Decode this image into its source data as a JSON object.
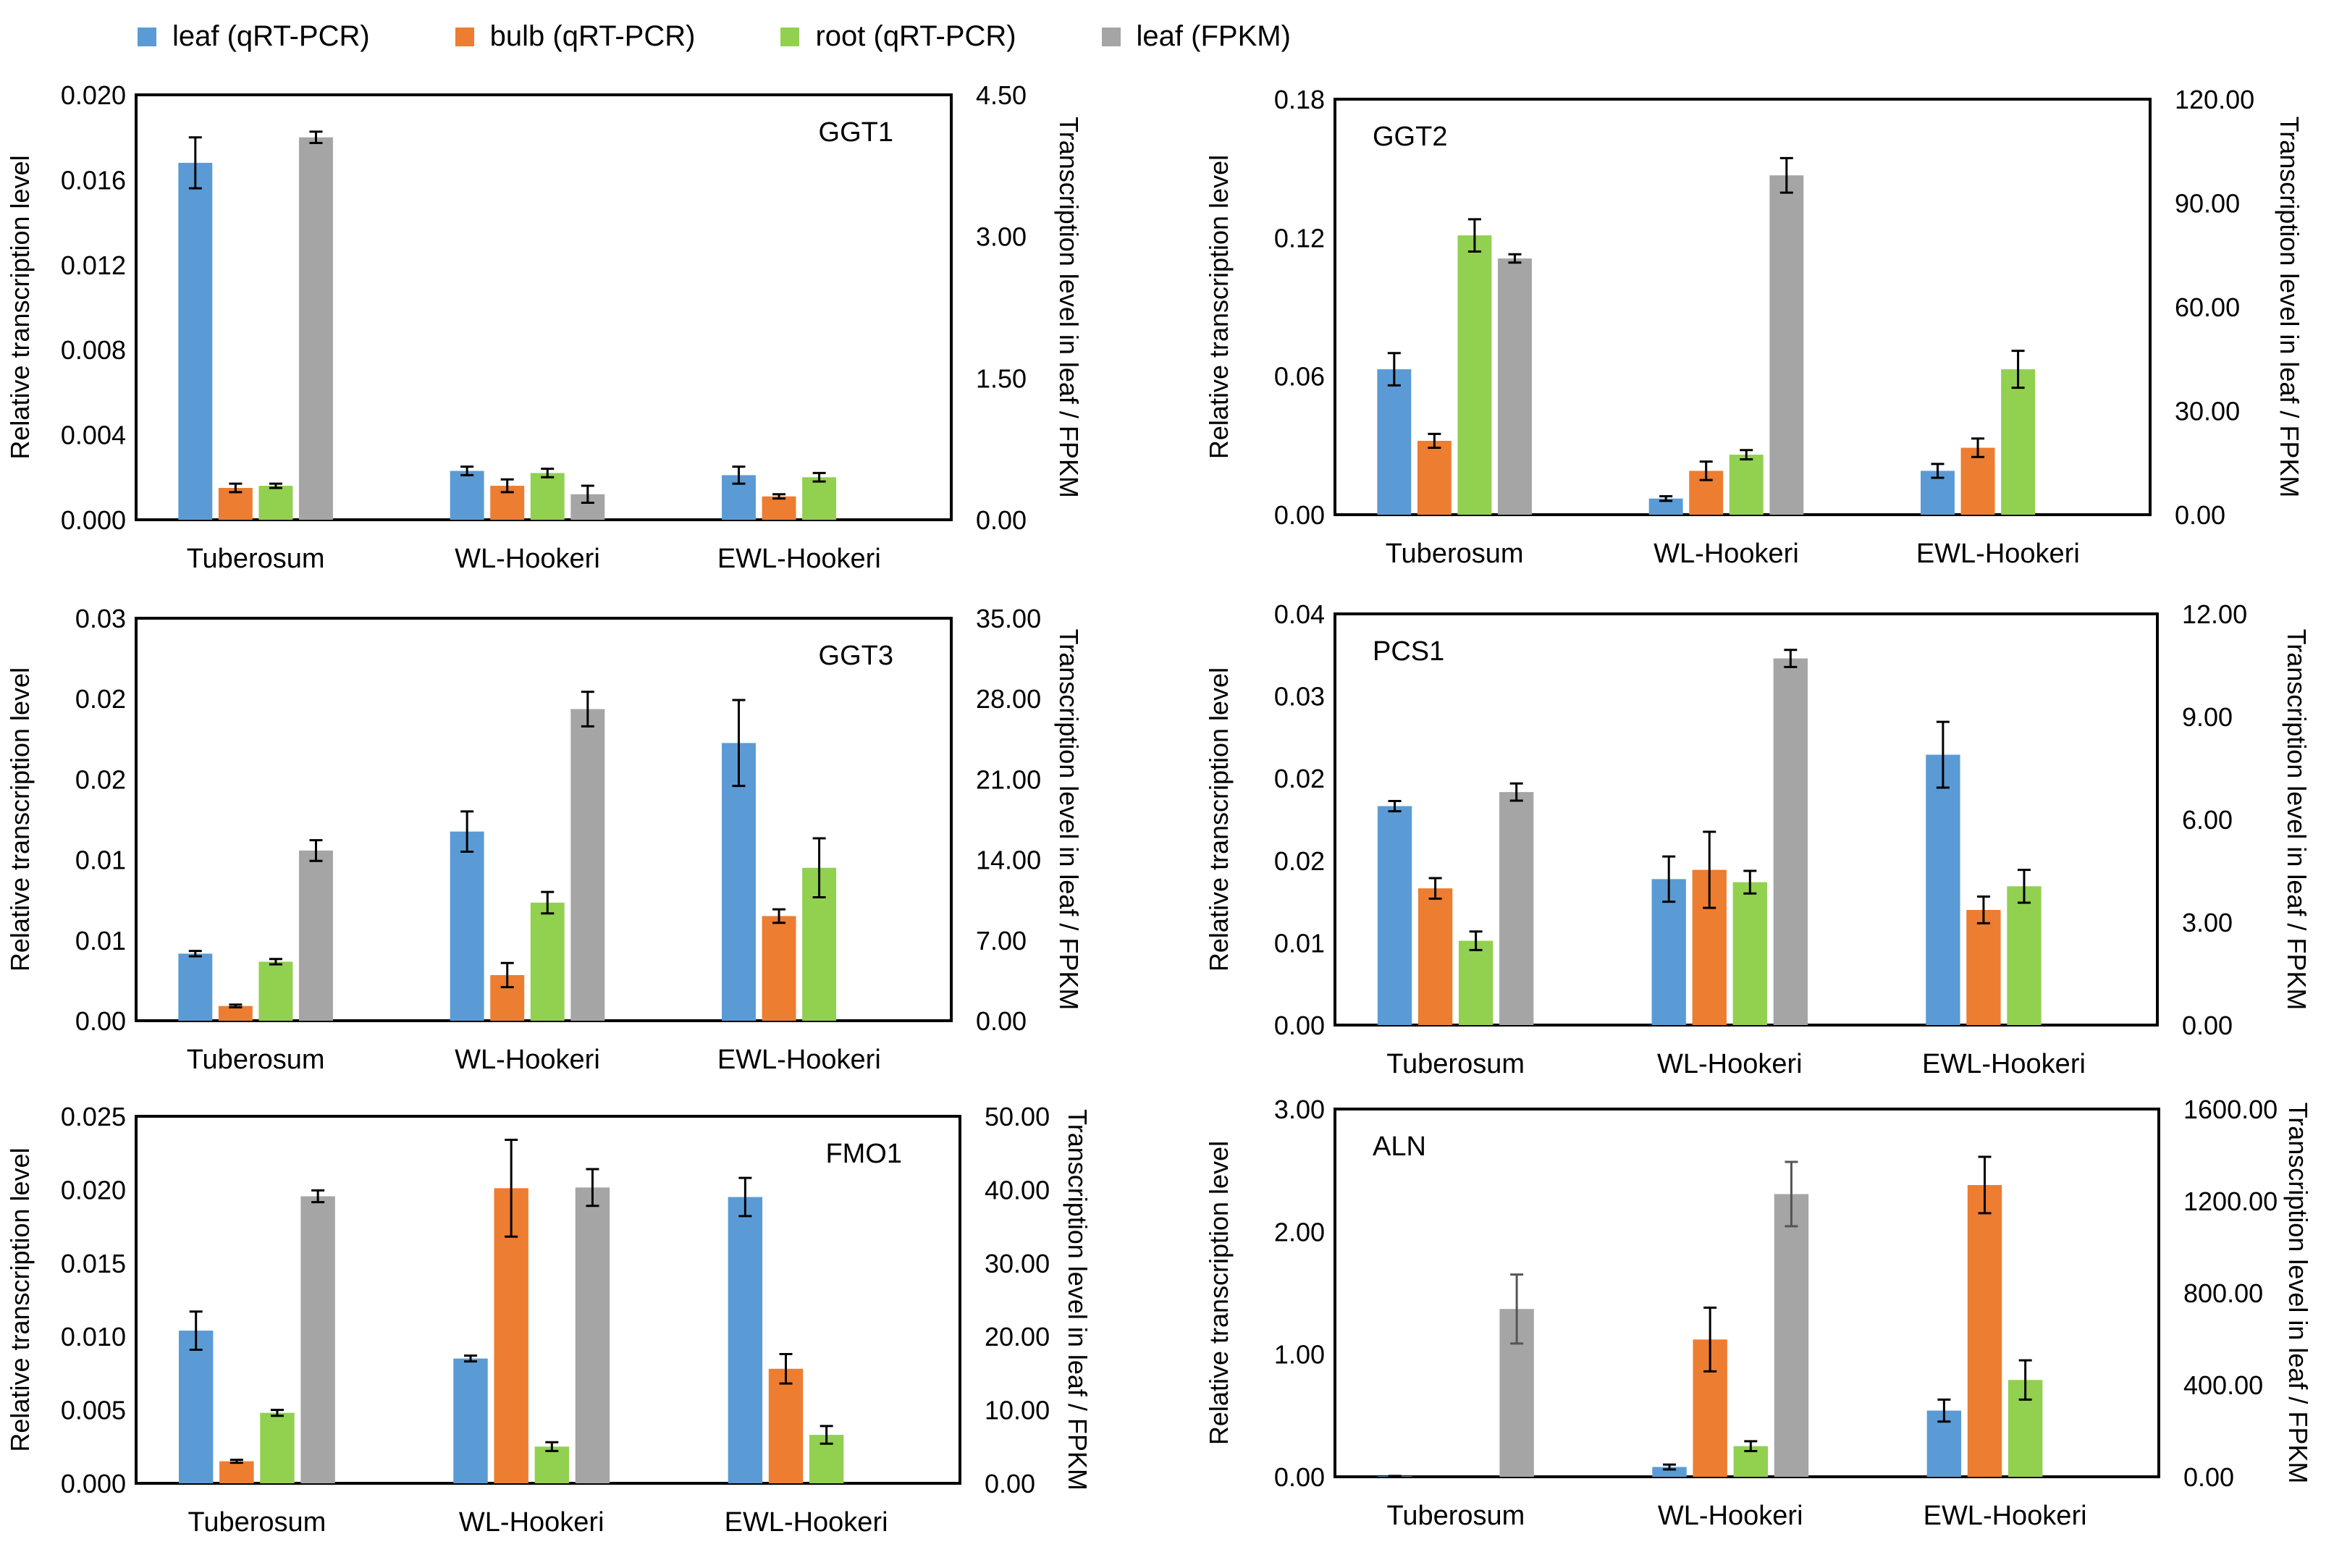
{
  "legend": [
    {
      "label": "leaf (qRT-PCR)",
      "color": "#5b9bd5"
    },
    {
      "label": "bulb (qRT-PCR)",
      "color": "#ed7d31"
    },
    {
      "label": "root (qRT-PCR)",
      "color": "#92d050"
    },
    {
      "label": "leaf (FPKM)",
      "color": "#a5a5a5"
    }
  ],
  "chart_data": [
    {
      "type": "bar",
      "title": "GGT1",
      "title_pos": "top-right",
      "categories": [
        "Tuberosum",
        "WL-Hookeri",
        "EWL-Hookeri"
      ],
      "ylabel": "Relative transcription level",
      "y2label": "Transcription level in leaf / FPKM",
      "ylim": [
        0,
        0.02
      ],
      "y2lim": [
        0,
        4.5
      ],
      "yticks": [
        "0.000",
        "0.004",
        "0.008",
        "0.012",
        "0.016",
        "0.020"
      ],
      "y2ticks": [
        "0.00",
        "1.50",
        "3.00",
        "4.50"
      ],
      "series": [
        {
          "name": "leaf (qRT-PCR)",
          "axis": "left",
          "values": [
            0.0168,
            0.0023,
            0.0021
          ],
          "errors": [
            0.0012,
            0.0002,
            0.0004
          ]
        },
        {
          "name": "bulb (qRT-PCR)",
          "axis": "left",
          "values": [
            0.0015,
            0.0016,
            0.0011
          ],
          "errors": [
            0.0002,
            0.0003,
            0.0001
          ]
        },
        {
          "name": "root (qRT-PCR)",
          "axis": "left",
          "values": [
            0.0016,
            0.0022,
            0.002
          ],
          "errors": [
            0.0001,
            0.0002,
            0.0002
          ]
        },
        {
          "name": "leaf (FPKM)",
          "axis": "right",
          "values": [
            4.05,
            0.27,
            0.0
          ],
          "errors": [
            0.06,
            0.09,
            0.0
          ]
        }
      ]
    },
    {
      "type": "bar",
      "title": "GGT2",
      "title_pos": "top-left",
      "categories": [
        "Tuberosum",
        "WL-Hookeri",
        "EWL-Hookeri"
      ],
      "ylabel": "Relative transcription level",
      "y2label": "Transcription level in leaf / FPKM",
      "ylim": [
        0,
        0.18
      ],
      "y2lim": [
        0,
        120
      ],
      "yticks": [
        "0.00",
        "0.06",
        "0.12",
        "0.18"
      ],
      "y2ticks": [
        "0.00",
        "30.00",
        "60.00",
        "90.00",
        "120.00"
      ],
      "series": [
        {
          "name": "leaf (qRT-PCR)",
          "axis": "left",
          "values": [
            0.063,
            0.007,
            0.019
          ],
          "errors": [
            0.007,
            0.001,
            0.003
          ]
        },
        {
          "name": "bulb (qRT-PCR)",
          "axis": "left",
          "values": [
            0.032,
            0.019,
            0.029
          ],
          "errors": [
            0.003,
            0.004,
            0.004
          ]
        },
        {
          "name": "root (qRT-PCR)",
          "axis": "left",
          "values": [
            0.121,
            0.026,
            0.063
          ],
          "errors": [
            0.007,
            0.002,
            0.008
          ]
        },
        {
          "name": "leaf (FPKM)",
          "axis": "right",
          "values": [
            74,
            98,
            0
          ],
          "errors": [
            1.2,
            5,
            0
          ]
        }
      ]
    },
    {
      "type": "bar",
      "title": "GGT3",
      "title_pos": "top-right",
      "categories": [
        "Tuberosum",
        "WL-Hookeri",
        "EWL-Hookeri"
      ],
      "ylabel": "Relative transcription level",
      "y2label": "Transcription level in leaf / FPKM",
      "ylim": [
        0,
        0.03
      ],
      "y2lim": [
        0,
        35
      ],
      "yticks": [
        "0.00",
        "0.01",
        "0.01",
        "0.02",
        "0.02",
        "0.03"
      ],
      "y2ticks": [
        "0.00",
        "7.00",
        "14.00",
        "21.00",
        "28.00",
        "35.00"
      ],
      "series": [
        {
          "name": "leaf (qRT-PCR)",
          "axis": "left",
          "values": [
            0.005,
            0.0141,
            0.0207
          ],
          "errors": [
            0.0002,
            0.0015,
            0.0032
          ]
        },
        {
          "name": "bulb (qRT-PCR)",
          "axis": "left",
          "values": [
            0.0011,
            0.0034,
            0.0078
          ],
          "errors": [
            0.0001,
            0.0009,
            0.0005
          ]
        },
        {
          "name": "root (qRT-PCR)",
          "axis": "left",
          "values": [
            0.0044,
            0.0088,
            0.0114
          ],
          "errors": [
            0.0002,
            0.0008,
            0.0022
          ]
        },
        {
          "name": "leaf (FPKM)",
          "axis": "right",
          "values": [
            14.8,
            27.1,
            0
          ],
          "errors": [
            0.9,
            1.5,
            0
          ]
        }
      ]
    },
    {
      "type": "bar",
      "title": "PCS1",
      "title_pos": "top-left",
      "categories": [
        "Tuberosum",
        "WL-Hookeri",
        "EWL-Hookeri"
      ],
      "ylabel": "Relative transcription level",
      "y2label": "Transcription level in leaf / FPKM",
      "ylim": [
        0,
        0.04
      ],
      "y2lim": [
        0,
        12
      ],
      "yticks": [
        "0.00",
        "0.01",
        "0.02",
        "0.02",
        "0.03",
        "0.04"
      ],
      "y2ticks": [
        "0.00",
        "3.00",
        "6.00",
        "9.00",
        "12.00"
      ],
      "series": [
        {
          "name": "leaf (qRT-PCR)",
          "axis": "left",
          "values": [
            0.0213,
            0.0142,
            0.0263
          ],
          "errors": [
            0.0005,
            0.0022,
            0.0032
          ]
        },
        {
          "name": "bulb (qRT-PCR)",
          "axis": "left",
          "values": [
            0.0133,
            0.0151,
            0.0112
          ],
          "errors": [
            0.001,
            0.0037,
            0.0013
          ]
        },
        {
          "name": "root (qRT-PCR)",
          "axis": "left",
          "values": [
            0.0082,
            0.0139,
            0.0135
          ],
          "errors": [
            0.0009,
            0.0011,
            0.0016
          ]
        },
        {
          "name": "leaf (FPKM)",
          "axis": "right",
          "values": [
            6.8,
            10.7,
            0
          ],
          "errors": [
            0.25,
            0.25,
            0
          ]
        }
      ]
    },
    {
      "type": "bar",
      "title": "FMO1",
      "title_pos": "top-right",
      "categories": [
        "Tuberosum",
        "WL-Hookeri",
        "EWL-Hookeri"
      ],
      "ylabel": "Relative transcription level",
      "y2label": "Transcription level in leaf / FPKM",
      "ylim": [
        0,
        0.025
      ],
      "y2lim": [
        0,
        50
      ],
      "yticks": [
        "0.000",
        "0.005",
        "0.010",
        "0.015",
        "0.020",
        "0.025"
      ],
      "y2ticks": [
        "0.00",
        "10.00",
        "20.00",
        "30.00",
        "40.00",
        "50.00"
      ],
      "series": [
        {
          "name": "leaf (qRT-PCR)",
          "axis": "left",
          "values": [
            0.0104,
            0.0085,
            0.0195
          ],
          "errors": [
            0.0013,
            0.0002,
            0.0013
          ]
        },
        {
          "name": "bulb (qRT-PCR)",
          "axis": "left",
          "values": [
            0.0015,
            0.0201,
            0.0078
          ],
          "errors": [
            0.0001,
            0.0033,
            0.001
          ]
        },
        {
          "name": "root (qRT-PCR)",
          "axis": "left",
          "values": [
            0.0048,
            0.0025,
            0.0033
          ],
          "errors": [
            0.0002,
            0.0003,
            0.0006
          ]
        },
        {
          "name": "leaf (FPKM)",
          "axis": "right",
          "values": [
            39.1,
            40.3,
            0
          ],
          "errors": [
            0.8,
            2.5,
            0
          ]
        }
      ]
    },
    {
      "type": "bar",
      "title": "ALN",
      "title_pos": "top-left",
      "categories": [
        "Tuberosum",
        "WL-Hookeri",
        "EWL-Hookeri"
      ],
      "ylabel": "Relative transcription level",
      "y2label": "Transcription level in leaf / FPKM",
      "ylim": [
        0,
        3.0
      ],
      "y2lim": [
        0,
        1600
      ],
      "yticks": [
        "0.00",
        "1.00",
        "2.00",
        "3.00"
      ],
      "y2ticks": [
        "0.00",
        "400.00",
        "800.00",
        "1200.00",
        "1600.00"
      ],
      "series": [
        {
          "name": "leaf (qRT-PCR)",
          "axis": "left",
          "values": [
            0.005,
            0.08,
            0.54
          ],
          "errors": [
            0.002,
            0.02,
            0.09
          ]
        },
        {
          "name": "bulb (qRT-PCR)",
          "axis": "left",
          "values": [
            0.0,
            1.12,
            2.38
          ],
          "errors": [
            0.0,
            0.26,
            0.23
          ]
        },
        {
          "name": "root (qRT-PCR)",
          "axis": "left",
          "values": [
            0.0,
            0.25,
            0.79
          ],
          "errors": [
            0.0,
            0.04,
            0.16
          ]
        },
        {
          "name": "leaf (FPKM)",
          "axis": "right",
          "values": [
            730,
            1230,
            0
          ],
          "errors": [
            150,
            140,
            0
          ]
        }
      ]
    }
  ]
}
